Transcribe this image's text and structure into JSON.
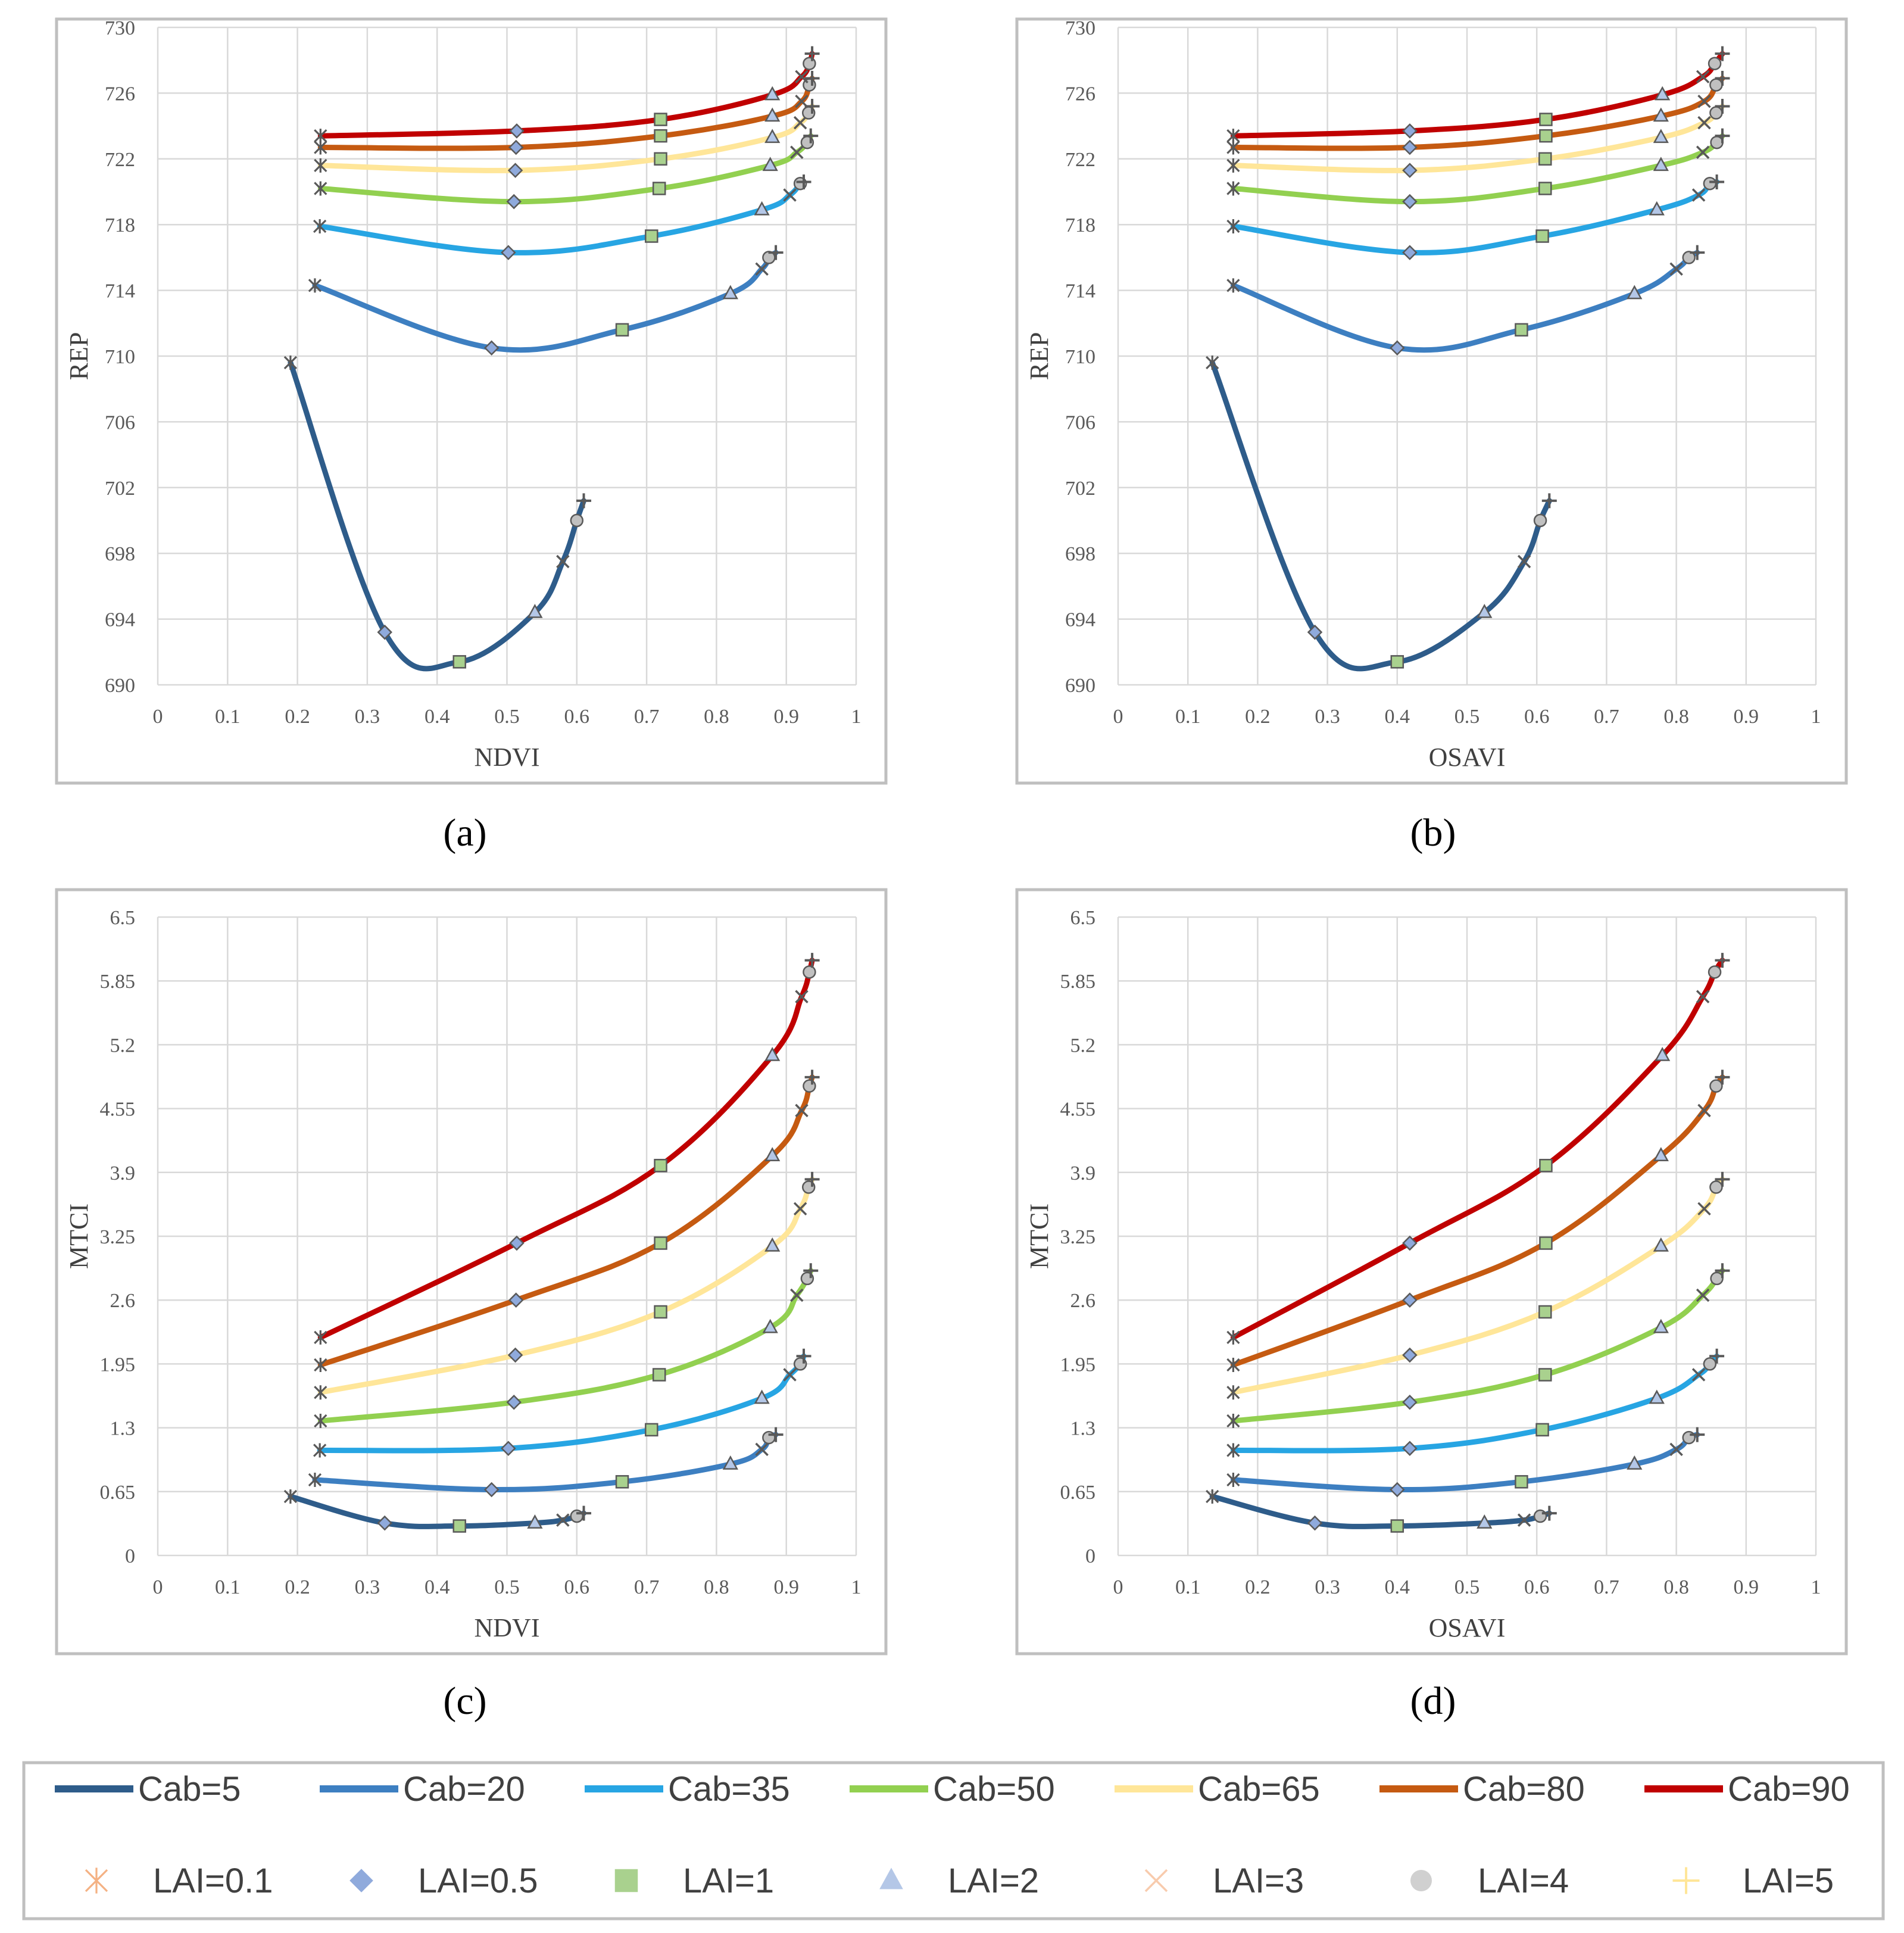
{
  "chart_data": [
    {
      "type": "line",
      "panel_label": "(a)",
      "xlabel": "NDVI",
      "ylabel": "REP",
      "xlim": [
        0,
        1
      ],
      "ylim": [
        690,
        730
      ],
      "x_ticks": [
        "0",
        "0.1",
        "0.2",
        "0.3",
        "0.4",
        "0.5",
        "0.6",
        "0.7",
        "0.8",
        "0.9",
        "1"
      ],
      "y_ticks": [
        "690",
        "694",
        "698",
        "702",
        "706",
        "710",
        "714",
        "718",
        "722",
        "726",
        "730"
      ],
      "grid": true,
      "series": [
        {
          "name": "Cab=5",
          "points": [
            [
              0.19,
              709.6
            ],
            [
              0.325,
              693.2
            ],
            [
              0.432,
              691.4
            ],
            [
              0.54,
              694.4
            ],
            [
              0.58,
              697.5
            ],
            [
              0.6,
              700.0
            ],
            [
              0.61,
              701.2
            ]
          ]
        },
        {
          "name": "Cab=20",
          "points": [
            [
              0.225,
              714.3
            ],
            [
              0.478,
              710.5
            ],
            [
              0.665,
              711.6
            ],
            [
              0.82,
              713.8
            ],
            [
              0.865,
              715.3
            ],
            [
              0.875,
              716.0
            ],
            [
              0.885,
              716.3
            ]
          ]
        },
        {
          "name": "Cab=35",
          "points": [
            [
              0.232,
              717.9
            ],
            [
              0.502,
              716.3
            ],
            [
              0.707,
              717.3
            ],
            [
              0.865,
              718.9
            ],
            [
              0.905,
              719.8
            ],
            [
              0.92,
              720.5
            ],
            [
              0.925,
              720.6
            ]
          ]
        },
        {
          "name": "Cab=50",
          "points": [
            [
              0.233,
              720.2
            ],
            [
              0.51,
              719.4
            ],
            [
              0.718,
              720.2
            ],
            [
              0.877,
              721.6
            ],
            [
              0.915,
              722.4
            ],
            [
              0.93,
              723.0
            ],
            [
              0.935,
              723.4
            ]
          ]
        },
        {
          "name": "Cab=65",
          "points": [
            [
              0.233,
              721.6
            ],
            [
              0.512,
              721.3
            ],
            [
              0.72,
              722.0
            ],
            [
              0.88,
              723.3
            ],
            [
              0.92,
              724.2
            ],
            [
              0.932,
              724.8
            ],
            [
              0.937,
              725.2
            ]
          ]
        },
        {
          "name": "Cab=80",
          "points": [
            [
              0.233,
              722.7
            ],
            [
              0.513,
              722.7
            ],
            [
              0.72,
              723.4
            ],
            [
              0.88,
              724.6
            ],
            [
              0.922,
              725.5
            ],
            [
              0.933,
              726.5
            ],
            [
              0.937,
              726.9
            ]
          ]
        },
        {
          "name": "Cab=90",
          "points": [
            [
              0.233,
              723.4
            ],
            [
              0.514,
              723.7
            ],
            [
              0.72,
              724.4
            ],
            [
              0.88,
              725.9
            ],
            [
              0.922,
              727.0
            ],
            [
              0.933,
              727.8
            ],
            [
              0.937,
              728.4
            ]
          ]
        }
      ]
    },
    {
      "type": "line",
      "panel_label": "(b)",
      "xlabel": "OSAVI",
      "ylabel": "REP",
      "xlim": [
        0,
        1
      ],
      "ylim": [
        690,
        730
      ],
      "x_ticks": [
        "0",
        "0.1",
        "0.2",
        "0.3",
        "0.4",
        "0.5",
        "0.6",
        "0.7",
        "0.8",
        "0.9",
        "1"
      ],
      "y_ticks": [
        "690",
        "694",
        "698",
        "702",
        "706",
        "710",
        "714",
        "718",
        "722",
        "726",
        "730"
      ],
      "grid": true,
      "series": [
        {
          "name": "Cab=5",
          "points": [
            [
              0.135,
              709.6
            ],
            [
              0.282,
              693.2
            ],
            [
              0.4,
              691.4
            ],
            [
              0.525,
              694.4
            ],
            [
              0.582,
              697.5
            ],
            [
              0.605,
              700.0
            ],
            [
              0.618,
              701.2
            ]
          ]
        },
        {
          "name": "Cab=20",
          "points": [
            [
              0.165,
              714.3
            ],
            [
              0.4,
              710.5
            ],
            [
              0.578,
              711.6
            ],
            [
              0.74,
              713.8
            ],
            [
              0.8,
              715.3
            ],
            [
              0.818,
              716.0
            ],
            [
              0.83,
              716.3
            ]
          ]
        },
        {
          "name": "Cab=35",
          "points": [
            [
              0.165,
              717.9
            ],
            [
              0.418,
              716.3
            ],
            [
              0.608,
              717.3
            ],
            [
              0.772,
              718.9
            ],
            [
              0.832,
              719.8
            ],
            [
              0.848,
              720.5
            ],
            [
              0.858,
              720.6
            ]
          ]
        },
        {
          "name": "Cab=50",
          "points": [
            [
              0.165,
              720.2
            ],
            [
              0.418,
              719.4
            ],
            [
              0.612,
              720.2
            ],
            [
              0.778,
              721.6
            ],
            [
              0.838,
              722.4
            ],
            [
              0.858,
              723.0
            ],
            [
              0.866,
              723.4
            ]
          ]
        },
        {
          "name": "Cab=65",
          "points": [
            [
              0.165,
              721.6
            ],
            [
              0.418,
              721.3
            ],
            [
              0.612,
              722.0
            ],
            [
              0.778,
              723.3
            ],
            [
              0.84,
              724.2
            ],
            [
              0.857,
              724.8
            ],
            [
              0.866,
              725.2
            ]
          ]
        },
        {
          "name": "Cab=80",
          "points": [
            [
              0.165,
              722.7
            ],
            [
              0.418,
              722.7
            ],
            [
              0.613,
              723.4
            ],
            [
              0.778,
              724.6
            ],
            [
              0.84,
              725.5
            ],
            [
              0.857,
              726.5
            ],
            [
              0.866,
              726.9
            ]
          ]
        },
        {
          "name": "Cab=90",
          "points": [
            [
              0.165,
              723.4
            ],
            [
              0.418,
              723.7
            ],
            [
              0.613,
              724.4
            ],
            [
              0.78,
              725.9
            ],
            [
              0.838,
              727.0
            ],
            [
              0.855,
              727.8
            ],
            [
              0.866,
              728.4
            ]
          ]
        }
      ]
    },
    {
      "type": "line",
      "panel_label": "(c)",
      "xlabel": "NDVI",
      "ylabel": "MTCI",
      "xlim": [
        0,
        1
      ],
      "ylim": [
        0,
        6.5
      ],
      "x_ticks": [
        "0",
        "0.1",
        "0.2",
        "0.3",
        "0.4",
        "0.5",
        "0.6",
        "0.7",
        "0.8",
        "0.9",
        "1"
      ],
      "y_ticks": [
        "0",
        "0.65",
        "1.3",
        "1.95",
        "2.6",
        "3.25",
        "3.9",
        "4.55",
        "5.2",
        "5.85",
        "6.5"
      ],
      "grid": true,
      "series": [
        {
          "name": "Cab=5",
          "points": [
            [
              0.19,
              0.6
            ],
            [
              0.325,
              0.33
            ],
            [
              0.432,
              0.3
            ],
            [
              0.54,
              0.33
            ],
            [
              0.58,
              0.36
            ],
            [
              0.6,
              0.4
            ],
            [
              0.61,
              0.43
            ]
          ]
        },
        {
          "name": "Cab=20",
          "points": [
            [
              0.225,
              0.77
            ],
            [
              0.478,
              0.67
            ],
            [
              0.665,
              0.75
            ],
            [
              0.82,
              0.93
            ],
            [
              0.865,
              1.08
            ],
            [
              0.875,
              1.2
            ],
            [
              0.885,
              1.23
            ]
          ]
        },
        {
          "name": "Cab=35",
          "points": [
            [
              0.232,
              1.07
            ],
            [
              0.502,
              1.09
            ],
            [
              0.707,
              1.28
            ],
            [
              0.865,
              1.6
            ],
            [
              0.905,
              1.84
            ],
            [
              0.92,
              1.95
            ],
            [
              0.925,
              2.03
            ]
          ]
        },
        {
          "name": "Cab=50",
          "points": [
            [
              0.233,
              1.37
            ],
            [
              0.51,
              1.56
            ],
            [
              0.718,
              1.84
            ],
            [
              0.877,
              2.32
            ],
            [
              0.915,
              2.65
            ],
            [
              0.93,
              2.82
            ],
            [
              0.935,
              2.9
            ]
          ]
        },
        {
          "name": "Cab=65",
          "points": [
            [
              0.233,
              1.66
            ],
            [
              0.512,
              2.04
            ],
            [
              0.72,
              2.48
            ],
            [
              0.88,
              3.15
            ],
            [
              0.92,
              3.53
            ],
            [
              0.932,
              3.75
            ],
            [
              0.937,
              3.83
            ]
          ]
        },
        {
          "name": "Cab=80",
          "points": [
            [
              0.233,
              1.94
            ],
            [
              0.513,
              2.6
            ],
            [
              0.72,
              3.18
            ],
            [
              0.88,
              4.07
            ],
            [
              0.922,
              4.53
            ],
            [
              0.933,
              4.78
            ],
            [
              0.937,
              4.87
            ]
          ]
        },
        {
          "name": "Cab=90",
          "points": [
            [
              0.233,
              2.22
            ],
            [
              0.514,
              3.18
            ],
            [
              0.72,
              3.97
            ],
            [
              0.88,
              5.09
            ],
            [
              0.922,
              5.69
            ],
            [
              0.933,
              5.94
            ],
            [
              0.937,
              6.06
            ]
          ]
        }
      ]
    },
    {
      "type": "line",
      "panel_label": "(d)",
      "xlabel": "OSAVI",
      "ylabel": "MTCI",
      "xlim": [
        0,
        1
      ],
      "ylim": [
        0,
        6.5
      ],
      "x_ticks": [
        "0",
        "0.1",
        "0.2",
        "0.3",
        "0.4",
        "0.5",
        "0.6",
        "0.7",
        "0.8",
        "0.9",
        "1"
      ],
      "y_ticks": [
        "0",
        "0.65",
        "1.3",
        "1.95",
        "2.6",
        "3.25",
        "3.9",
        "4.55",
        "5.2",
        "5.85",
        "6.5"
      ],
      "grid": true,
      "series": [
        {
          "name": "Cab=5",
          "points": [
            [
              0.135,
              0.6
            ],
            [
              0.282,
              0.33
            ],
            [
              0.4,
              0.3
            ],
            [
              0.525,
              0.33
            ],
            [
              0.582,
              0.36
            ],
            [
              0.605,
              0.4
            ],
            [
              0.618,
              0.43
            ]
          ]
        },
        {
          "name": "Cab=20",
          "points": [
            [
              0.165,
              0.77
            ],
            [
              0.4,
              0.67
            ],
            [
              0.578,
              0.75
            ],
            [
              0.74,
              0.93
            ],
            [
              0.8,
              1.08
            ],
            [
              0.818,
              1.2
            ],
            [
              0.83,
              1.23
            ]
          ]
        },
        {
          "name": "Cab=35",
          "points": [
            [
              0.165,
              1.07
            ],
            [
              0.418,
              1.09
            ],
            [
              0.608,
              1.28
            ],
            [
              0.772,
              1.6
            ],
            [
              0.832,
              1.84
            ],
            [
              0.848,
              1.95
            ],
            [
              0.858,
              2.03
            ]
          ]
        },
        {
          "name": "Cab=50",
          "points": [
            [
              0.165,
              1.37
            ],
            [
              0.418,
              1.56
            ],
            [
              0.612,
              1.84
            ],
            [
              0.778,
              2.32
            ],
            [
              0.838,
              2.65
            ],
            [
              0.858,
              2.82
            ],
            [
              0.866,
              2.9
            ]
          ]
        },
        {
          "name": "Cab=65",
          "points": [
            [
              0.165,
              1.66
            ],
            [
              0.418,
              2.04
            ],
            [
              0.612,
              2.48
            ],
            [
              0.778,
              3.15
            ],
            [
              0.84,
              3.53
            ],
            [
              0.857,
              3.75
            ],
            [
              0.866,
              3.83
            ]
          ]
        },
        {
          "name": "Cab=80",
          "points": [
            [
              0.165,
              1.94
            ],
            [
              0.418,
              2.6
            ],
            [
              0.613,
              3.18
            ],
            [
              0.778,
              4.07
            ],
            [
              0.84,
              4.53
            ],
            [
              0.857,
              4.78
            ],
            [
              0.866,
              4.87
            ]
          ]
        },
        {
          "name": "Cab=90",
          "points": [
            [
              0.165,
              2.22
            ],
            [
              0.418,
              3.18
            ],
            [
              0.613,
              3.97
            ],
            [
              0.78,
              5.09
            ],
            [
              0.838,
              5.69
            ],
            [
              0.855,
              5.94
            ],
            [
              0.866,
              6.06
            ]
          ]
        }
      ]
    }
  ],
  "legend": {
    "placement": "bottom",
    "lines": [
      {
        "label": "Cab=5",
        "color": "#2e5c8a"
      },
      {
        "label": "Cab=20",
        "color": "#3d7fc1"
      },
      {
        "label": "Cab=35",
        "color": "#27a5e3"
      },
      {
        "label": "Cab=50",
        "color": "#92d050"
      },
      {
        "label": "Cab=65",
        "color": "#ffe699"
      },
      {
        "label": "Cab=80",
        "color": "#c55a11"
      },
      {
        "label": "Cab=90",
        "color": "#c00000"
      }
    ],
    "markers": [
      {
        "label": "LAI=0.1",
        "marker": "asterisk"
      },
      {
        "label": "LAI=0.5",
        "marker": "diamond"
      },
      {
        "label": "LAI=1",
        "marker": "square"
      },
      {
        "label": "LAI=2",
        "marker": "triangle"
      },
      {
        "label": "LAI=3",
        "marker": "x"
      },
      {
        "label": "LAI=4",
        "marker": "circle"
      },
      {
        "label": "LAI=5",
        "marker": "plus"
      }
    ],
    "legend_marker_colors": [
      "#f4b183",
      "#8faadc",
      "#a9d18e",
      "#b4c7e7",
      "#f8cbad",
      "#d0d0d0",
      "#ffe699"
    ]
  },
  "series_colors": [
    "#2e5c8a",
    "#3d7fc1",
    "#27a5e3",
    "#92d050",
    "#ffe699",
    "#c55a11",
    "#c00000"
  ],
  "marker_styles": {
    "square_fill": "#a9d18e",
    "diamond_fill": "#8faadc",
    "triangle_fill": "#b4c7e7",
    "circle_fill": "#c0c0c0",
    "stroke": "#595959",
    "grid": "#d9d9d9",
    "frame": "#bfbfbf"
  }
}
